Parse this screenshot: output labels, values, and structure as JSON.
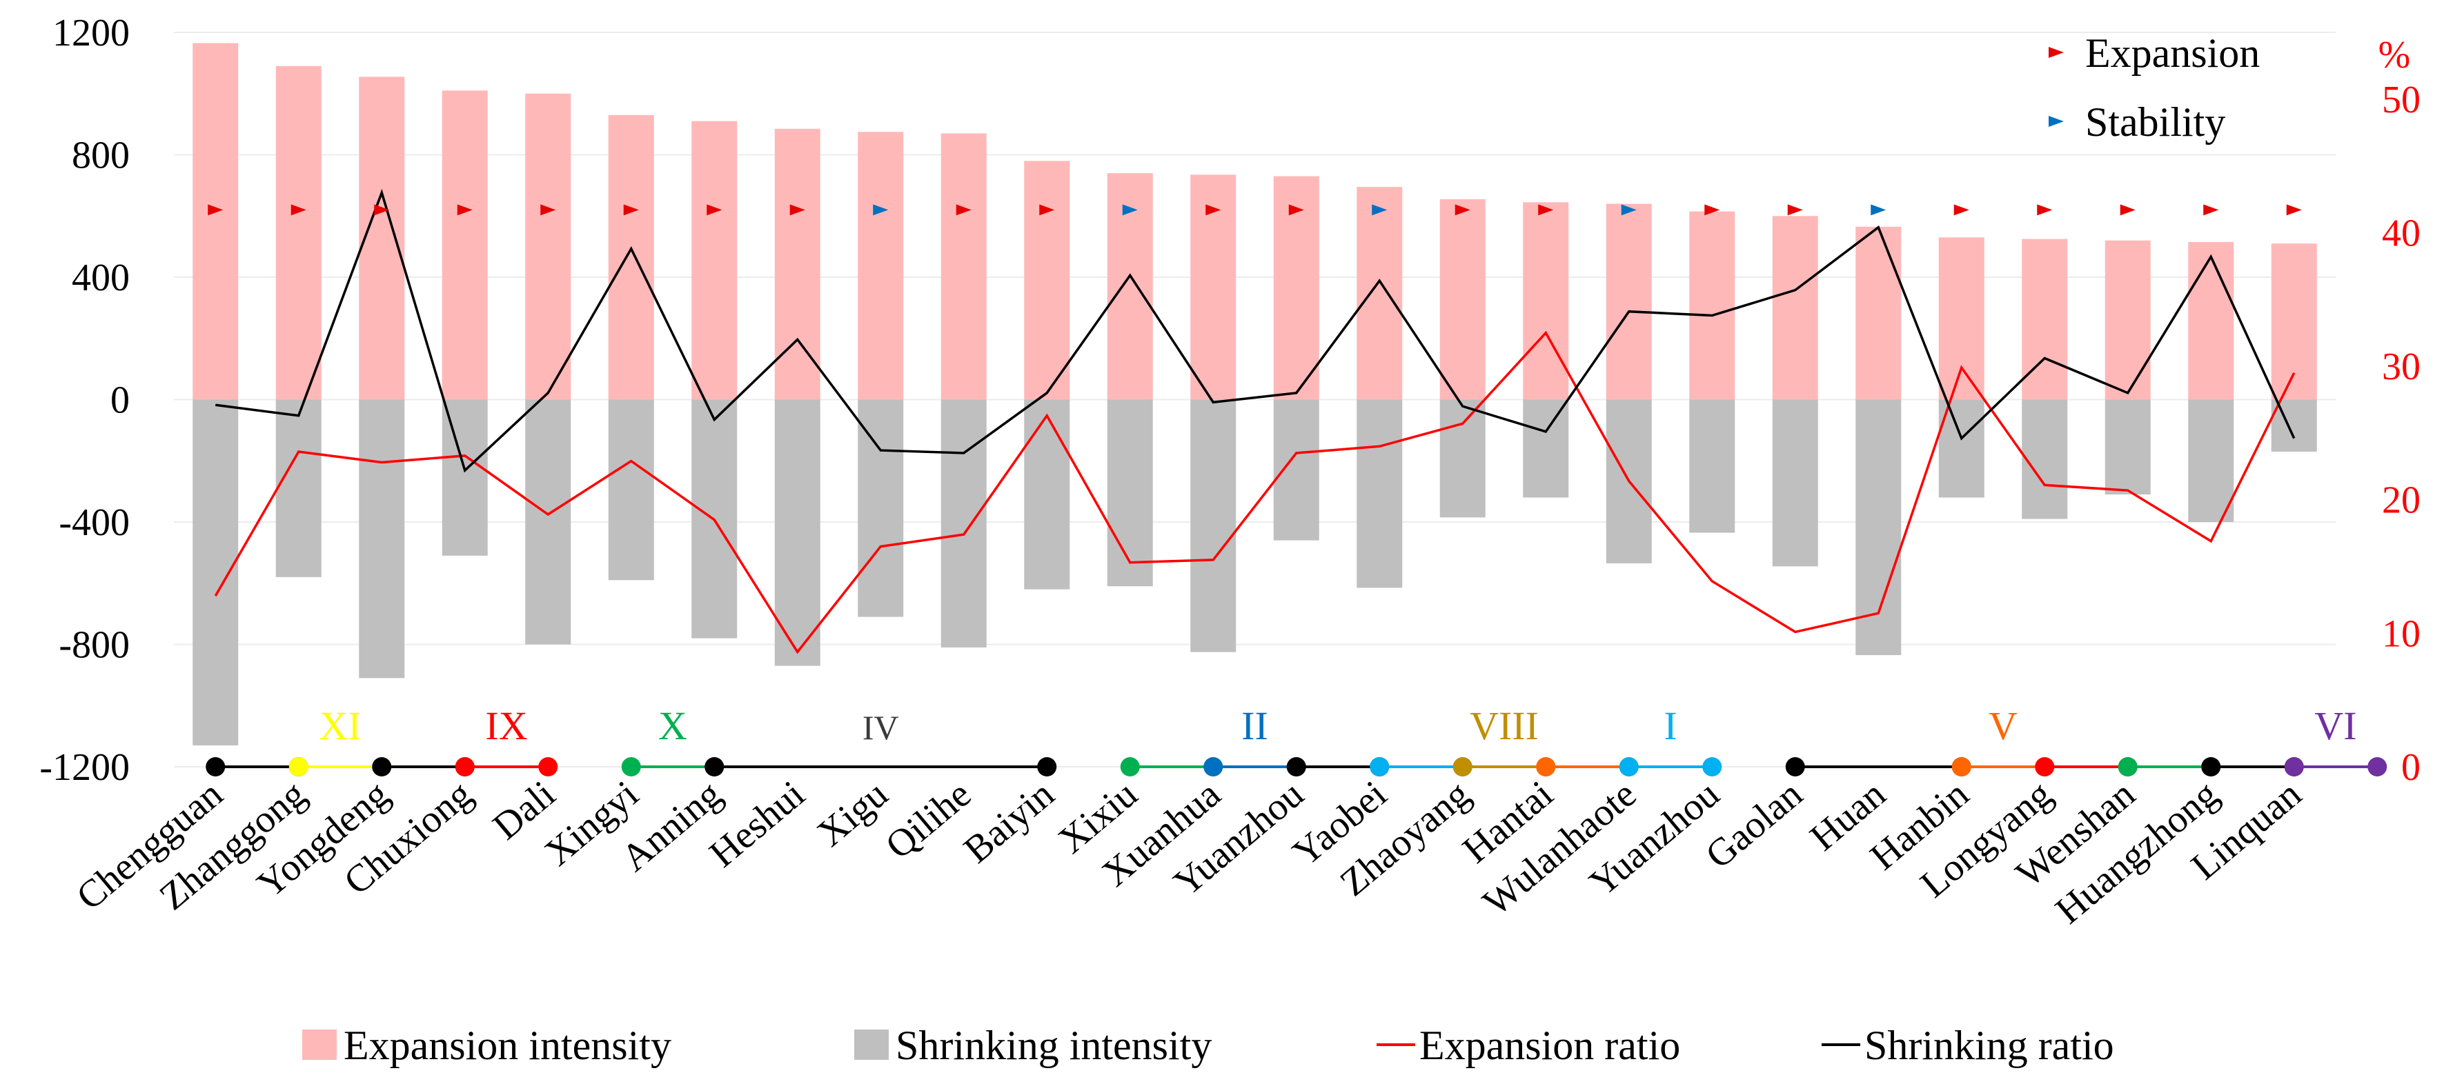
{
  "chart_data": {
    "type": "bar",
    "title": "",
    "xlabel": "",
    "ylabel": "",
    "ylim": [
      -1200,
      1200
    ],
    "y_ticks": [
      "1200",
      "800",
      "400",
      "0",
      "-400",
      "-800",
      "-1200"
    ],
    "y2lim": [
      0,
      55
    ],
    "y2_ticks": [
      "50",
      "40",
      "30",
      "20",
      "10",
      "0"
    ],
    "y2_unit": "%",
    "categories": [
      "Chengguan",
      "Zhanggong",
      "Yongdeng",
      "Chuxiong",
      "Dali",
      "Xingyi",
      "Anning",
      "Heshui",
      "Xigu",
      "Qilihe",
      "Baiyin",
      "Xixiu",
      "Xuanhua",
      "Yuanzhou",
      "Yaobei",
      "Zhaoyang",
      "Hantai",
      "Wulanhaote",
      "Yuanzhou",
      "Gaolan",
      "Huan",
      "Hanbin",
      "Longyang",
      "Wenshan",
      "Huangzhong",
      "Linquan"
    ],
    "series": [
      {
        "name": "Expansion intensity",
        "type": "bar",
        "axis": "left",
        "color": "#ffb8b8",
        "values": [
          1165,
          1090,
          1055,
          1010,
          1000,
          930,
          910,
          885,
          875,
          870,
          780,
          740,
          735,
          730,
          695,
          655,
          645,
          640,
          615,
          600,
          565,
          530,
          525,
          520,
          515,
          510
        ]
      },
      {
        "name": "Shrinking intensity",
        "type": "bar",
        "axis": "left",
        "color": "#bfbfbf",
        "values": [
          -1130,
          -580,
          -910,
          -510,
          -800,
          -590,
          -780,
          -870,
          -710,
          -810,
          -620,
          -610,
          -825,
          -460,
          -615,
          -385,
          -320,
          -535,
          -435,
          -545,
          -835,
          -320,
          -390,
          -310,
          -400,
          -170
        ]
      },
      {
        "name": "Expansion ratio",
        "type": "line",
        "axis": "right",
        "color": "#ff0000",
        "values": [
          12.8,
          23.6,
          22.8,
          23.3,
          18.9,
          22.9,
          18.5,
          8.6,
          16.5,
          17.4,
          26.3,
          15.3,
          15.5,
          23.5,
          24.0,
          25.7,
          32.5,
          21.4,
          13.9,
          10.1,
          11.5,
          29.9,
          21.1,
          20.7,
          16.9,
          29.5
        ]
      },
      {
        "name": "Shrinking ratio",
        "type": "line",
        "axis": "right",
        "color": "#000000",
        "values": [
          27.1,
          26.3,
          43.0,
          22.2,
          28.0,
          38.8,
          26.0,
          32.0,
          23.7,
          23.5,
          28.0,
          36.8,
          27.3,
          28.0,
          36.4,
          27.0,
          25.1,
          34.1,
          33.8,
          35.7,
          40.4,
          24.6,
          30.6,
          28.0,
          38.2,
          24.6
        ]
      }
    ],
    "markers": {
      "legend": [
        {
          "label": "Expansion",
          "color": "#e60000"
        },
        {
          "label": "Stability",
          "color": "#0070c0"
        }
      ],
      "value": 620,
      "types": [
        "Expansion",
        "Expansion",
        "Expansion",
        "Expansion",
        "Expansion",
        "Expansion",
        "Expansion",
        "Expansion",
        "Stability",
        "Expansion",
        "Expansion",
        "Stability",
        "Expansion",
        "Expansion",
        "Stability",
        "Expansion",
        "Expansion",
        "Stability",
        "Expansion",
        "Expansion",
        "Stability",
        "Expansion",
        "Expansion",
        "Expansion",
        "Expansion",
        "Expansion"
      ]
    },
    "groups": [
      {
        "label": "",
        "color": "#000000",
        "start": 0,
        "end": 1
      },
      {
        "label": "XI",
        "color": "#ffff00",
        "start": 1,
        "end": 2
      },
      {
        "label": "",
        "color": "#000000",
        "start": 2,
        "end": 3
      },
      {
        "label": "IX",
        "color": "#ff0000",
        "start": 3,
        "end": 4
      },
      {
        "label": "X",
        "color": "#00b050",
        "start": 5,
        "end": 6
      },
      {
        "label": "IV",
        "color": "#000000",
        "start": 6,
        "end": 10
      },
      {
        "label": "",
        "color": "#00b050",
        "start": 11,
        "end": 12
      },
      {
        "label": "II",
        "color": "#0070c0",
        "start": 12,
        "end": 13
      },
      {
        "label": "",
        "color": "#000000",
        "start": 13,
        "end": 14
      },
      {
        "label": "",
        "color": "#00b0f0",
        "start": 14,
        "end": 15
      },
      {
        "label": "VIII",
        "color": "#bf8f00",
        "start": 15,
        "end": 16
      },
      {
        "label": "",
        "color": "#ff6600",
        "start": 16,
        "end": 17
      },
      {
        "label": "I",
        "color": "#00b0f0",
        "start": 17,
        "end": 18
      },
      {
        "label": "",
        "color": "#000000",
        "start": 19,
        "end": 21
      },
      {
        "label": "V",
        "color": "#ff6600",
        "start": 21,
        "end": 22
      },
      {
        "label": "",
        "color": "#ff0000",
        "start": 22,
        "end": 23
      },
      {
        "label": "",
        "color": "#00b050",
        "start": 23,
        "end": 24
      },
      {
        "label": "",
        "color": "#000000",
        "start": 24,
        "end": 25
      },
      {
        "label": "VI",
        "color": "#7030a0",
        "start": 25,
        "end": 26
      }
    ],
    "legend": [
      "Expansion intensity",
      "Shrinking intensity",
      "Expansion ratio",
      "Shrinking ratio"
    ]
  }
}
